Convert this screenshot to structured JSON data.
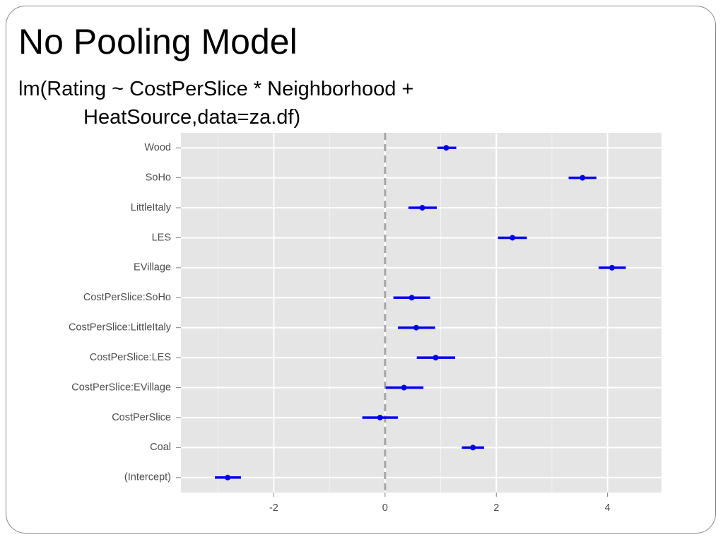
{
  "chart_data": {
    "type": "coefplot",
    "title": "No Pooling Model",
    "subtitle": "lm(Rating ~ CostPerSlice * Neighborhood + HeatSource,data=za.df)",
    "categories": [
      "Wood",
      "SoHo",
      "LittleItaly",
      "LES",
      "EVillage",
      "CostPerSlice:SoHo",
      "CostPerSlice:LittleItaly",
      "CostPerSlice:LES",
      "CostPerSlice:EVillage",
      "CostPerSlice",
      "Coal",
      "(Intercept)"
    ],
    "values": [
      1.1,
      3.55,
      0.67,
      2.29,
      4.08,
      0.48,
      0.56,
      0.91,
      0.34,
      -0.09,
      1.58,
      -2.83
    ],
    "lower": [
      0.94,
      3.3,
      0.42,
      2.03,
      3.84,
      0.15,
      0.23,
      0.57,
      0.01,
      -0.41,
      1.38,
      -3.06
    ],
    "upper": [
      1.28,
      3.8,
      0.93,
      2.55,
      4.33,
      0.81,
      0.9,
      1.26,
      0.69,
      0.23,
      1.78,
      -2.59
    ],
    "color": "#0000ee",
    "xlim": [
      -3.67,
      4.97
    ],
    "xticks": [
      -2,
      0,
      2,
      4
    ],
    "grid": true,
    "minor_grid": true,
    "refline": 0
  }
}
